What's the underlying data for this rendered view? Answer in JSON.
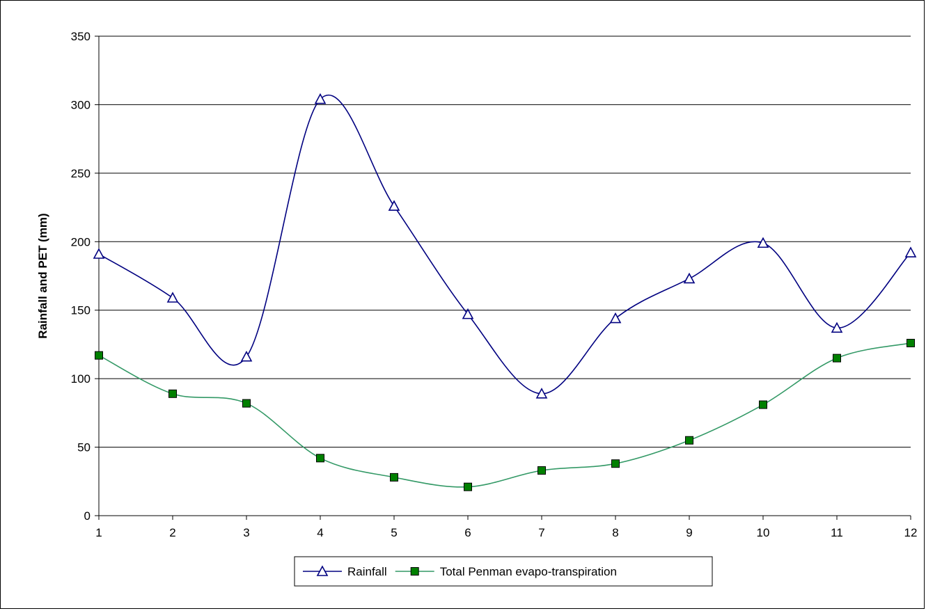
{
  "chart_data": {
    "type": "line",
    "title": "",
    "xlabel": "",
    "ylabel": "Rainfall and PET (mm)",
    "x": [
      1,
      2,
      3,
      4,
      5,
      6,
      7,
      8,
      9,
      10,
      11,
      12
    ],
    "xlim": [
      1,
      12
    ],
    "ylim": [
      0,
      350
    ],
    "yticks": [
      0,
      50,
      100,
      150,
      200,
      250,
      300,
      350
    ],
    "grid": "horizontal",
    "legend_position": "bottom",
    "smoothed": true,
    "series": [
      {
        "name": "Rainfall",
        "color": "#000080",
        "marker": "triangle-open",
        "values": [
          191,
          159,
          116,
          304,
          226,
          147,
          89,
          144,
          173,
          199,
          137,
          192
        ]
      },
      {
        "name": "Total Penman evapo-transpiration",
        "color": "#339966",
        "marker": "square-filled",
        "marker_color": "#008000",
        "values": [
          117,
          89,
          82,
          42,
          28,
          21,
          33,
          38,
          55,
          81,
          115,
          126
        ]
      }
    ]
  }
}
